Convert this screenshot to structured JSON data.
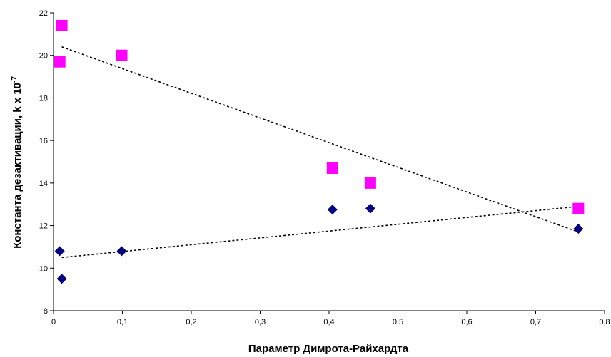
{
  "chart_data": {
    "type": "scatter",
    "xlabel": "Параметр Димрота-Райхардта",
    "ylabel_main": "Константа дезактивации, k x 10",
    "ylabel_exponent": "-7",
    "xlim": [
      0,
      0.8
    ],
    "ylim": [
      8,
      22
    ],
    "x_ticks": [
      0,
      0.1,
      0.2,
      0.3,
      0.4,
      0.5,
      0.6,
      0.7,
      0.8
    ],
    "x_tick_labels": [
      "0",
      "0,1",
      "0,2",
      "0,3",
      "0,4",
      "0,5",
      "0,6",
      "0,7",
      "0,8"
    ],
    "y_ticks": [
      8,
      10,
      12,
      14,
      16,
      18,
      20,
      22
    ],
    "y_tick_labels": [
      "8",
      "10",
      "12",
      "14",
      "16",
      "18",
      "20",
      "22"
    ],
    "grid": false,
    "legend": "none",
    "series": [
      {
        "marker": "square",
        "color": "#FF00FF",
        "points": [
          {
            "x": 0.012,
            "y": 21.4
          },
          {
            "x": 0.009,
            "y": 19.7
          },
          {
            "x": 0.099,
            "y": 20.0
          },
          {
            "x": 0.405,
            "y": 14.7
          },
          {
            "x": 0.46,
            "y": 14.0
          },
          {
            "x": 0.762,
            "y": 12.8
          }
        ],
        "trendline": {
          "x1": 0.012,
          "y1": 20.4,
          "x2": 0.762,
          "y2": 11.7
        }
      },
      {
        "marker": "diamond",
        "color": "#000080",
        "points": [
          {
            "x": 0.009,
            "y": 10.8
          },
          {
            "x": 0.012,
            "y": 9.5
          },
          {
            "x": 0.099,
            "y": 10.8
          },
          {
            "x": 0.405,
            "y": 12.75
          },
          {
            "x": 0.46,
            "y": 12.8
          },
          {
            "x": 0.762,
            "y": 11.85
          }
        ],
        "trendline": {
          "x1": 0.012,
          "y1": 10.5,
          "x2": 0.762,
          "y2": 12.9
        }
      }
    ]
  }
}
